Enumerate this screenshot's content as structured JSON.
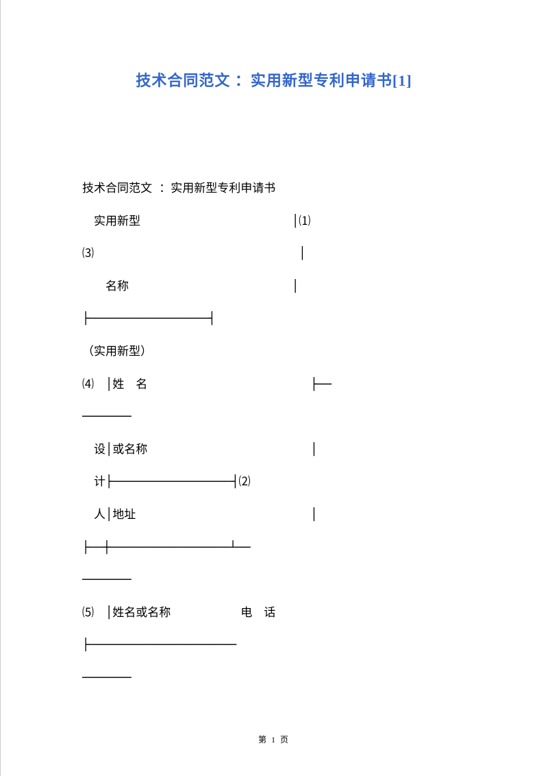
{
  "document": {
    "title": "技术合同范文 ：实用新型专利申请书[1]",
    "title_color": "#3366cc",
    "title_fontsize": 22,
    "body_fontsize": 17,
    "body_color": "#000000",
    "background_color": "#ffffff",
    "lines": [
      "技术合同范文 ：实用新型专利申请书",
      "　实用新型　　　　　　　　　　　　　│⑴",
      "⑶　　　　　　　　　　　　　　　　　 │",
      "　　名称　　　　　　　　　　　　　　│",
      "├─────────────────┤",
      "（实用新型）",
      "⑷　│姓　名　　　　　　　　　　　　　　├──",
      "───────",
      "　设│或名称　　　　　　　　　　　　　　│",
      "　计├─────────────────┤⑵",
      "　人│地址　　　　　　　　　　　　　　　│",
      "├──┼─────────────────┴──",
      "───────",
      "⑸　│姓名或名称　　　　　　电　话",
      "",
      "├─────────────────────",
      "───────"
    ],
    "page_number": "第 1 页"
  }
}
